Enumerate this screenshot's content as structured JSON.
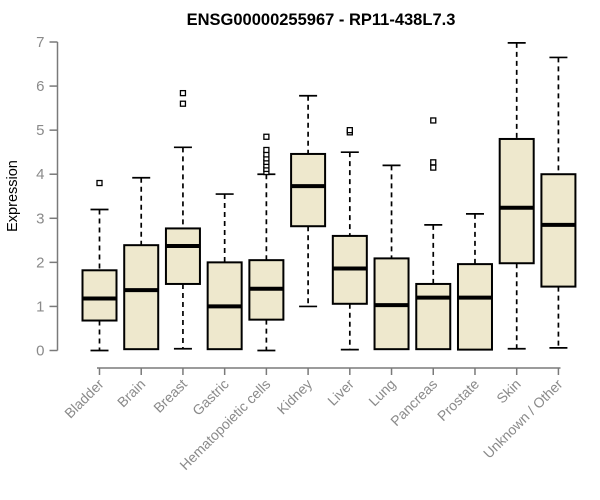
{
  "chart_data": {
    "type": "boxplot",
    "title": "ENSG00000255967 - RP11-438L7.3",
    "xlabel": "",
    "ylabel": "Expression",
    "ylim": [
      0,
      7
    ],
    "yticks": [
      0,
      1,
      2,
      3,
      4,
      5,
      6,
      7
    ],
    "grid": false,
    "legend": "none",
    "categories": [
      "Bladder",
      "Brain",
      "Breast",
      "Gastric",
      "Hematopoietic cells",
      "Kidney",
      "Liver",
      "Lung",
      "Pancreas",
      "Prostate",
      "Skin",
      "Unknown / Other"
    ],
    "boxes": [
      {
        "label": "Bladder",
        "min": 0.0,
        "q1": 0.68,
        "median": 1.18,
        "q3": 1.82,
        "max": 3.2,
        "outliers": [
          3.8
        ]
      },
      {
        "label": "Brain",
        "min": 0.03,
        "q1": 0.03,
        "median": 1.37,
        "q3": 2.39,
        "max": 3.92,
        "outliers": []
      },
      {
        "label": "Breast",
        "min": 0.04,
        "q1": 1.51,
        "median": 2.37,
        "q3": 2.77,
        "max": 4.61,
        "outliers": [
          5.6,
          5.84
        ]
      },
      {
        "label": "Gastric",
        "min": 0.03,
        "q1": 0.03,
        "median": 1.0,
        "q3": 2.0,
        "max": 3.55,
        "outliers": []
      },
      {
        "label": "Hematopoietic cells",
        "min": 0.0,
        "q1": 0.7,
        "median": 1.4,
        "q3": 2.05,
        "max": 4.0,
        "outliers": [
          4.05,
          4.12,
          4.2,
          4.28,
          4.36,
          4.45,
          4.55,
          4.85
        ]
      },
      {
        "label": "Kidney",
        "min": 1.0,
        "q1": 2.82,
        "median": 3.73,
        "q3": 4.46,
        "max": 5.78,
        "outliers": []
      },
      {
        "label": "Liver",
        "min": 0.02,
        "q1": 1.06,
        "median": 1.86,
        "q3": 2.6,
        "max": 4.5,
        "outliers": [
          4.95,
          5.0
        ]
      },
      {
        "label": "Lung",
        "min": 0.03,
        "q1": 0.03,
        "median": 1.03,
        "q3": 2.09,
        "max": 4.2,
        "outliers": []
      },
      {
        "label": "Pancreas",
        "min": 0.03,
        "q1": 0.03,
        "median": 1.2,
        "q3": 1.51,
        "max": 2.85,
        "outliers": [
          4.15,
          4.27,
          5.22
        ]
      },
      {
        "label": "Prostate",
        "min": 0.02,
        "q1": 0.02,
        "median": 1.2,
        "q3": 1.96,
        "max": 3.1,
        "outliers": []
      },
      {
        "label": "Skin",
        "min": 0.04,
        "q1": 1.98,
        "median": 3.24,
        "q3": 4.8,
        "max": 6.98,
        "outliers": []
      },
      {
        "label": "Unknown / Other",
        "min": 0.06,
        "q1": 1.45,
        "median": 2.85,
        "q3": 4.0,
        "max": 6.65,
        "outliers": []
      }
    ],
    "colors": {
      "box_fill": "#EEE8CD",
      "box_stroke": "#000000",
      "median": "#000000",
      "whisker": "#000000",
      "outlier_stroke": "#000000",
      "outlier_fill": "#ffffff",
      "axis_line": "#7a7a7a",
      "axis_text": "#8a8a8a",
      "title": "#000000",
      "background": "#ffffff"
    }
  }
}
